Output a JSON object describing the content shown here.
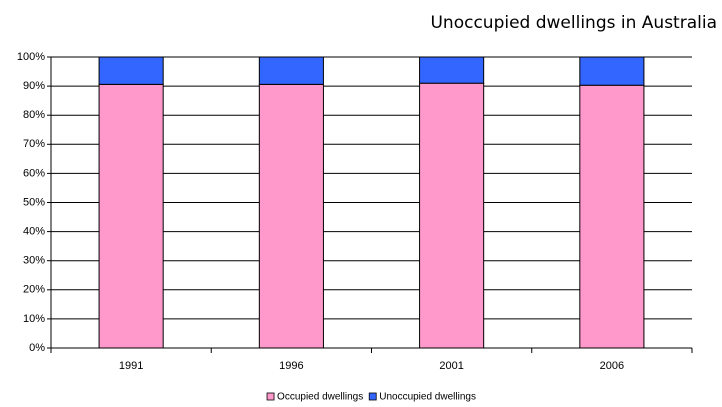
{
  "chart_data": {
    "type": "stacked_bar",
    "title": "Unoccupied dwellings in Australia",
    "categories": [
      "1991",
      "1996",
      "2001",
      "2006"
    ],
    "series": [
      {
        "name": "Occupied dwellings",
        "color": "#ff99cc",
        "values": [
          90.6,
          90.6,
          91.0,
          90.3
        ]
      },
      {
        "name": "Unoccupied dwellings",
        "color": "#3366ff",
        "values": [
          9.4,
          9.4,
          9.0,
          9.7
        ]
      }
    ],
    "ylim": [
      0,
      100
    ],
    "yticks": [
      {
        "value": 0,
        "label": "0%"
      },
      {
        "value": 10,
        "label": "10%"
      },
      {
        "value": 20,
        "label": "20%"
      },
      {
        "value": 30,
        "label": "30%"
      },
      {
        "value": 40,
        "label": "40%"
      },
      {
        "value": 50,
        "label": "50%"
      },
      {
        "value": 60,
        "label": "60%"
      },
      {
        "value": 70,
        "label": "70%"
      },
      {
        "value": 80,
        "label": "80%"
      },
      {
        "value": 90,
        "label": "90%"
      },
      {
        "value": 100,
        "label": "100%"
      }
    ],
    "grid": true,
    "legend": "bottom"
  }
}
